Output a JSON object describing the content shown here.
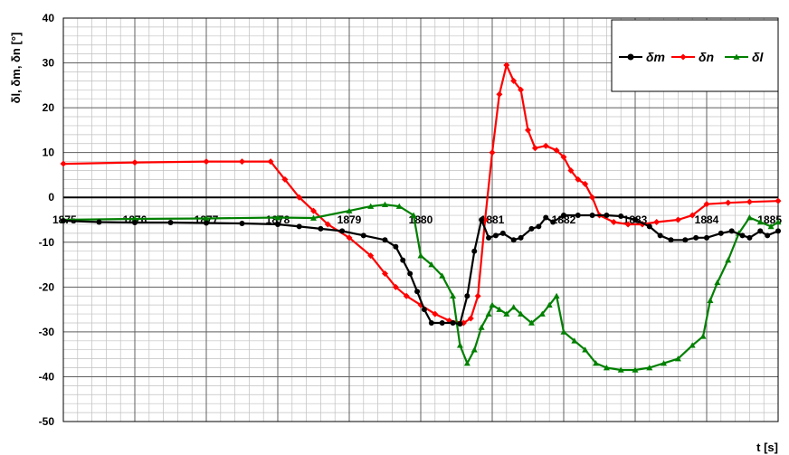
{
  "chart_data": {
    "type": "line",
    "xlabel": "t [s]",
    "ylabel": "δl, δm, δn [°]",
    "xlim": [
      1875,
      1885
    ],
    "ylim": [
      -50,
      40
    ],
    "x_ticks": [
      "1875",
      "1876",
      "1877",
      "1878",
      "1879",
      "1880",
      "1881",
      "1882",
      "1883",
      "1884",
      "1885"
    ],
    "y_ticks": [
      "40",
      "30",
      "20",
      "10",
      "0",
      "-10",
      "-20",
      "-30",
      "-40",
      "-50"
    ],
    "grid": true,
    "legend_position": "top-right",
    "series": [
      {
        "name": "δm",
        "color": "#000000",
        "marker": "circle",
        "points": [
          [
            1875,
            -5.2
          ],
          [
            1875.5,
            -5.5
          ],
          [
            1876,
            -5.6
          ],
          [
            1876.5,
            -5.6
          ],
          [
            1877,
            -5.7
          ],
          [
            1877.5,
            -5.8
          ],
          [
            1878,
            -6
          ],
          [
            1878.3,
            -6.5
          ],
          [
            1878.6,
            -7
          ],
          [
            1878.9,
            -7.5
          ],
          [
            1879.2,
            -8.5
          ],
          [
            1879.5,
            -9.5
          ],
          [
            1879.65,
            -11
          ],
          [
            1879.75,
            -14
          ],
          [
            1879.85,
            -17
          ],
          [
            1879.95,
            -21
          ],
          [
            1880.05,
            -25
          ],
          [
            1880.15,
            -28
          ],
          [
            1880.3,
            -28
          ],
          [
            1880.45,
            -28
          ],
          [
            1880.55,
            -28.2
          ],
          [
            1880.65,
            -22
          ],
          [
            1880.75,
            -12
          ],
          [
            1880.85,
            -5
          ],
          [
            1880.95,
            -9
          ],
          [
            1881.05,
            -8.5
          ],
          [
            1881.15,
            -8
          ],
          [
            1881.3,
            -9.5
          ],
          [
            1881.4,
            -9
          ],
          [
            1881.55,
            -7
          ],
          [
            1881.65,
            -6.5
          ],
          [
            1881.75,
            -4.5
          ],
          [
            1881.85,
            -5.5
          ],
          [
            1882,
            -4
          ],
          [
            1882.2,
            -4
          ],
          [
            1882.4,
            -4
          ],
          [
            1882.6,
            -4
          ],
          [
            1882.8,
            -4.2
          ],
          [
            1883,
            -5
          ],
          [
            1883.2,
            -6.5
          ],
          [
            1883.35,
            -8.5
          ],
          [
            1883.5,
            -9.5
          ],
          [
            1883.7,
            -9.5
          ],
          [
            1883.85,
            -9
          ],
          [
            1884,
            -9
          ],
          [
            1884.2,
            -8
          ],
          [
            1884.35,
            -7.5
          ],
          [
            1884.5,
            -8.5
          ],
          [
            1884.6,
            -9
          ],
          [
            1884.75,
            -7.5
          ],
          [
            1884.85,
            -8.5
          ],
          [
            1885,
            -7.5
          ]
        ]
      },
      {
        "name": "δn",
        "color": "#ff0000",
        "marker": "diamond",
        "points": [
          [
            1875,
            7.5
          ],
          [
            1876,
            7.8
          ],
          [
            1877,
            8
          ],
          [
            1877.5,
            8
          ],
          [
            1877.9,
            8
          ],
          [
            1878.1,
            4
          ],
          [
            1878.3,
            0
          ],
          [
            1878.5,
            -3
          ],
          [
            1878.7,
            -6
          ],
          [
            1879,
            -9
          ],
          [
            1879.3,
            -13
          ],
          [
            1879.5,
            -17
          ],
          [
            1879.65,
            -20
          ],
          [
            1879.8,
            -22
          ],
          [
            1880,
            -24
          ],
          [
            1880.2,
            -26
          ],
          [
            1880.4,
            -27.5
          ],
          [
            1880.6,
            -28
          ],
          [
            1880.7,
            -27
          ],
          [
            1880.8,
            -22
          ],
          [
            1880.9,
            -5
          ],
          [
            1881,
            10
          ],
          [
            1881.1,
            23
          ],
          [
            1881.2,
            29.5
          ],
          [
            1881.3,
            26
          ],
          [
            1881.4,
            24
          ],
          [
            1881.5,
            15
          ],
          [
            1881.6,
            11
          ],
          [
            1881.75,
            11.5
          ],
          [
            1881.9,
            10.5
          ],
          [
            1882,
            9
          ],
          [
            1882.1,
            6
          ],
          [
            1882.2,
            4
          ],
          [
            1882.3,
            3
          ],
          [
            1882.4,
            0
          ],
          [
            1882.5,
            -4
          ],
          [
            1882.7,
            -5.5
          ],
          [
            1882.9,
            -6
          ],
          [
            1883.1,
            -6
          ],
          [
            1883.3,
            -5.5
          ],
          [
            1883.6,
            -5
          ],
          [
            1883.8,
            -4
          ],
          [
            1884,
            -1.5
          ],
          [
            1884.3,
            -1.2
          ],
          [
            1884.6,
            -1
          ],
          [
            1885,
            -0.8
          ]
        ]
      },
      {
        "name": "δl",
        "color": "#008000",
        "marker": "triangle",
        "points": [
          [
            1875,
            -5
          ],
          [
            1876,
            -4.8
          ],
          [
            1877,
            -4.7
          ],
          [
            1878,
            -4.5
          ],
          [
            1878.5,
            -4.6
          ],
          [
            1879,
            -3
          ],
          [
            1879.3,
            -2
          ],
          [
            1879.5,
            -1.6
          ],
          [
            1879.7,
            -2
          ],
          [
            1879.9,
            -4
          ],
          [
            1880,
            -13
          ],
          [
            1880.15,
            -15
          ],
          [
            1880.3,
            -17.5
          ],
          [
            1880.45,
            -22
          ],
          [
            1880.55,
            -33
          ],
          [
            1880.65,
            -37
          ],
          [
            1880.75,
            -34
          ],
          [
            1880.85,
            -29
          ],
          [
            1880.95,
            -26
          ],
          [
            1881,
            -24
          ],
          [
            1881.1,
            -25
          ],
          [
            1881.2,
            -26
          ],
          [
            1881.3,
            -24.5
          ],
          [
            1881.4,
            -26
          ],
          [
            1881.55,
            -28
          ],
          [
            1881.7,
            -26
          ],
          [
            1881.8,
            -24
          ],
          [
            1881.9,
            -22
          ],
          [
            1882,
            -30
          ],
          [
            1882.15,
            -32
          ],
          [
            1882.3,
            -34
          ],
          [
            1882.45,
            -37
          ],
          [
            1882.6,
            -38
          ],
          [
            1882.8,
            -38.5
          ],
          [
            1883,
            -38.5
          ],
          [
            1883.2,
            -38
          ],
          [
            1883.4,
            -37
          ],
          [
            1883.6,
            -36
          ],
          [
            1883.8,
            -33
          ],
          [
            1883.95,
            -31
          ],
          [
            1884.05,
            -23
          ],
          [
            1884.15,
            -19
          ],
          [
            1884.3,
            -14
          ],
          [
            1884.45,
            -8
          ],
          [
            1884.6,
            -4.5
          ],
          [
            1884.75,
            -5.5
          ],
          [
            1884.9,
            -6.5
          ],
          [
            1885,
            -5.5
          ]
        ]
      }
    ]
  }
}
